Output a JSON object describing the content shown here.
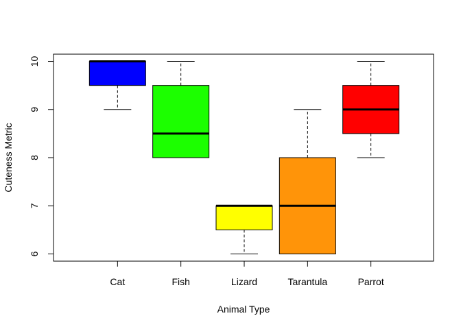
{
  "chart_data": {
    "type": "box",
    "title": "",
    "xlabel": "Animal Type",
    "ylabel": "Cuteness Metric",
    "ylim": [
      5.85,
      10.15
    ],
    "yticks": [
      6,
      7,
      8,
      9,
      10
    ],
    "grid": false,
    "categories": [
      "Cat",
      "Fish",
      "Lizard",
      "Tarantula",
      "Parrot"
    ],
    "boxes": [
      {
        "category": "Cat",
        "min": 9,
        "q1": 9.5,
        "median": 10,
        "q3": 10,
        "max": 10,
        "color": "#0000ff"
      },
      {
        "category": "Fish",
        "min": 8,
        "q1": 8,
        "median": 8.5,
        "q3": 9.5,
        "max": 10,
        "color": "#1cff00"
      },
      {
        "category": "Lizard",
        "min": 6,
        "q1": 6.5,
        "median": 7,
        "q3": 7,
        "max": 7,
        "color": "#ffff00"
      },
      {
        "category": "Tarantula",
        "min": 6,
        "q1": 6,
        "median": 7,
        "q3": 8,
        "max": 9,
        "color": "#ff9409"
      },
      {
        "category": "Parrot",
        "min": 8,
        "q1": 8.5,
        "median": 9,
        "q3": 9.5,
        "max": 10,
        "color": "#ff0000"
      }
    ]
  }
}
